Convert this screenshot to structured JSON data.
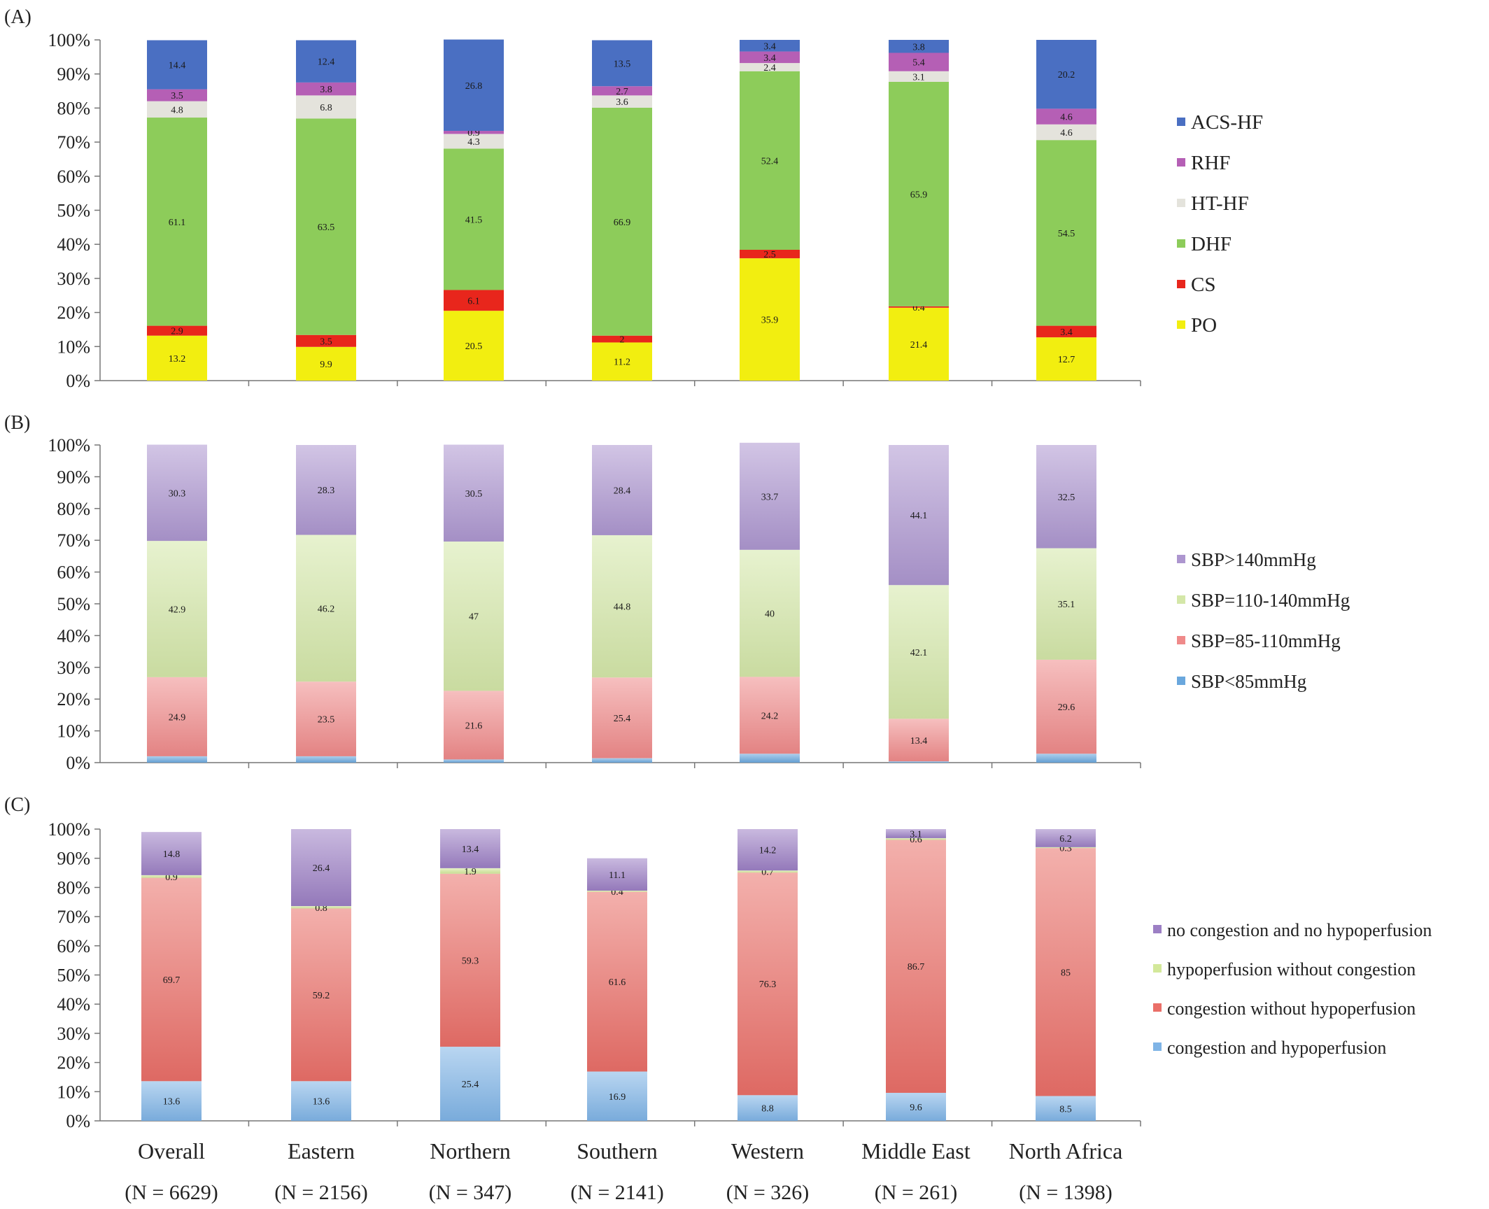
{
  "categories": [
    "Overall",
    "Eastern",
    "Northern",
    "Southern",
    "Western",
    "Middle East",
    "North Africa"
  ],
  "category_n": [
    "(N = 6629)",
    "(N = 2156)",
    "(N = 347)",
    "(N = 2141)",
    "(N = 326)",
    "(N = 261)",
    "(N = 1398)"
  ],
  "y_ticks": [
    "0%",
    "10%",
    "20%",
    "30%",
    "40%",
    "50%",
    "60%",
    "70%",
    "80%",
    "90%",
    "100%"
  ],
  "chart_data": [
    {
      "panel_label": "(A)",
      "type": "bar",
      "stacked": true,
      "ylim": [
        0,
        100
      ],
      "categories": [
        "Overall",
        "Eastern",
        "Northern",
        "Southern",
        "Western",
        "Middle East",
        "North Africa"
      ],
      "legend_position": "right",
      "series": [
        {
          "name": "PO",
          "color": "#f2ee10",
          "values": [
            13.2,
            9.9,
            20.5,
            11.2,
            35.9,
            21.4,
            12.7
          ],
          "labels": [
            "13.2",
            "9.9",
            "20.5",
            "11.2",
            "35.9",
            "21.4",
            "12.7"
          ]
        },
        {
          "name": "CS",
          "color": "#e8261c",
          "values": [
            2.9,
            3.5,
            6.1,
            2,
            2.5,
            0.4,
            3.4
          ],
          "labels": [
            "2.9",
            "3.5",
            "6.1",
            "2",
            "2.5",
            "0.4",
            "3.4"
          ]
        },
        {
          "name": "DHF",
          "color": "#8dcc5a",
          "values": [
            61.1,
            63.5,
            41.5,
            66.9,
            52.4,
            65.9,
            54.5
          ],
          "labels": [
            "61.1",
            "63.5",
            "41.5",
            "66.9",
            "52.4",
            "65.9",
            "54.5"
          ]
        },
        {
          "name": "HT-HF",
          "color": "#e4e3dc",
          "values": [
            4.8,
            6.8,
            4.3,
            3.6,
            2.4,
            3.1,
            4.6
          ],
          "labels": [
            "4.8",
            "6.8",
            "4.3",
            "3.6",
            "2.4",
            "3.1",
            "4.6"
          ]
        },
        {
          "name": "RHF",
          "color": "#b55fb5",
          "values": [
            3.5,
            3.8,
            0.9,
            2.7,
            3.4,
            5.4,
            4.6
          ],
          "labels": [
            "3.5",
            "3.8",
            "0.9",
            "2.7",
            "3.4",
            "5.4",
            "4.6"
          ]
        },
        {
          "name": "ACS-HF",
          "color": "#4a6fc2",
          "values": [
            14.4,
            12.4,
            26.8,
            13.5,
            3.4,
            3.8,
            20.2
          ],
          "labels": [
            "14.4",
            "12.4",
            "26.8",
            "13.5",
            "3.4",
            "3.8",
            "20.2"
          ]
        }
      ]
    },
    {
      "panel_label": "(B)",
      "type": "bar",
      "stacked": true,
      "ylim": [
        0,
        100
      ],
      "categories": [
        "Overall",
        "Eastern",
        "Northern",
        "Southern",
        "Western",
        "Middle East",
        "North Africa"
      ],
      "legend_position": "right",
      "series": [
        {
          "name": "SBP<85mmHg",
          "color": "#6aa7dd",
          "values": [
            2,
            2,
            1,
            1.4,
            2.8,
            0.4,
            2.8
          ],
          "labels": [
            "",
            "",
            "",
            "",
            "",
            "",
            ""
          ]
        },
        {
          "name": "SBP=85-110mmHg",
          "color": "#ef8a8a",
          "values": [
            24.9,
            23.5,
            21.6,
            25.4,
            24.2,
            13.4,
            29.6
          ],
          "labels": [
            "24.9",
            "23.5",
            "21.6",
            "25.4",
            "24.2",
            "13.4",
            "29.6"
          ]
        },
        {
          "name": "SBP=110-140mmHg",
          "color": "#d4e7a8",
          "values": [
            42.9,
            46.2,
            47,
            44.8,
            40,
            42.1,
            35.1
          ],
          "labels": [
            "42.9",
            "46.2",
            "47",
            "44.8",
            "40",
            "42.1",
            "35.1"
          ]
        },
        {
          "name": "SBP>140mmHg",
          "color": "#ad96cf",
          "values": [
            30.3,
            28.3,
            30.5,
            28.4,
            33.7,
            44.1,
            32.5
          ],
          "labels": [
            "30.3",
            "28.3",
            "30.5",
            "28.4",
            "33.7",
            "44.1",
            "32.5"
          ]
        }
      ]
    },
    {
      "panel_label": "(C)",
      "type": "bar",
      "stacked": true,
      "ylim": [
        0,
        100
      ],
      "categories": [
        "Overall",
        "Eastern",
        "Northern",
        "Southern",
        "Western",
        "Middle East",
        "North Africa"
      ],
      "legend_position": "right",
      "series": [
        {
          "name": "congestion and hypoperfusion",
          "color": "#7fb4e6",
          "values": [
            13.6,
            13.6,
            25.4,
            16.9,
            8.8,
            9.6,
            8.5
          ],
          "labels": [
            "13.6",
            "13.6",
            "25.4",
            "16.9",
            "8.8",
            "9.6",
            "8.5"
          ]
        },
        {
          "name": "congestion without hypoperfusion",
          "color": "#ea6f68",
          "values": [
            69.7,
            59.2,
            59.3,
            61.6,
            76.3,
            86.7,
            85
          ],
          "labels": [
            "69.7",
            "59.2",
            "59.3",
            "61.6",
            "76.3",
            "86.7",
            "85"
          ]
        },
        {
          "name": "hypoperfusion without congestion",
          "color": "#d3e89a",
          "values": [
            0.9,
            0.8,
            1.9,
            0.4,
            0.7,
            0.6,
            0.3
          ],
          "labels": [
            "0.9",
            "0.8",
            "1.9",
            "0.4",
            "0.7",
            "0.6",
            "0.3"
          ]
        },
        {
          "name": "no congestion and no hypoperfusion",
          "color": "#9c7fc4",
          "values": [
            14.8,
            26.4,
            13.4,
            11.1,
            14.2,
            3.1,
            6.2
          ],
          "labels": [
            "14.8",
            "26.4",
            "13.4",
            "11.1",
            "14.2",
            "3.1",
            "6.2"
          ]
        }
      ]
    }
  ]
}
